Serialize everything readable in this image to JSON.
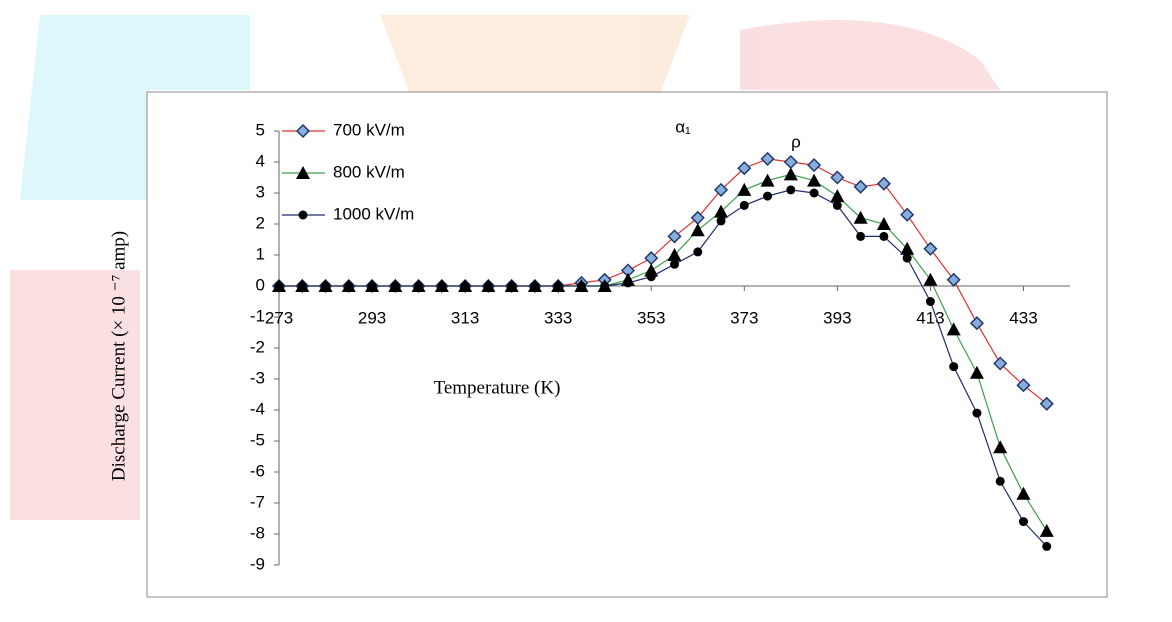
{
  "chart_data": {
    "type": "line",
    "y_label": "Discharge Current  (× 10 ⁻⁷ amp)",
    "x_label": "Temperature (K)",
    "annotations": [
      "α₁",
      "ρ"
    ],
    "x": [
      273,
      278,
      283,
      288,
      293,
      298,
      303,
      308,
      313,
      318,
      323,
      328,
      333,
      338,
      343,
      348,
      353,
      358,
      363,
      368,
      373,
      378,
      383,
      388,
      393,
      398,
      403,
      408,
      413,
      418,
      423,
      428,
      433,
      438
    ],
    "series": [
      {
        "name": "700 kV/m",
        "color": "#e0302c",
        "marker": "diamond",
        "marker_color": "#1f3a6e",
        "marker_fill": "#8aaedc",
        "values": [
          0,
          0,
          0,
          0,
          0,
          0,
          0,
          0,
          0,
          0,
          0,
          0,
          0,
          0.1,
          0.2,
          0.5,
          0.9,
          1.6,
          2.2,
          3.1,
          3.8,
          4.1,
          4.0,
          3.9,
          3.5,
          3.2,
          3.3,
          2.3,
          1.2,
          0.2,
          -1.2,
          -2.5,
          -3.2,
          -3.8
        ]
      },
      {
        "name": "800 kV/m",
        "color": "#3aa04a",
        "marker": "triangle",
        "marker_color": "#000000",
        "values": [
          0,
          0,
          0,
          0,
          0,
          0,
          0,
          0,
          0,
          0,
          0,
          0,
          0,
          0,
          0,
          0.2,
          0.5,
          1.0,
          1.8,
          2.4,
          3.1,
          3.4,
          3.6,
          3.4,
          2.9,
          2.2,
          2.0,
          1.2,
          0.2,
          -1.4,
          -2.8,
          -5.2,
          -6.7,
          -7.9
        ]
      },
      {
        "name": "1000 kV/m",
        "color": "#1f2f6e",
        "marker": "circle",
        "marker_color": "#000000",
        "values": [
          0,
          0,
          0,
          0,
          0,
          0,
          0,
          0,
          0,
          0,
          0,
          0,
          0,
          0,
          0,
          0.1,
          0.3,
          0.7,
          1.1,
          2.1,
          2.6,
          2.9,
          3.1,
          3.0,
          2.6,
          1.6,
          1.6,
          0.9,
          -0.5,
          -2.6,
          -4.1,
          -6.3,
          -7.6,
          -8.4
        ]
      }
    ],
    "xlim": [
      273,
      443
    ],
    "xticks": [
      273,
      293,
      313,
      333,
      353,
      373,
      393,
      413,
      433
    ],
    "ylim": [
      -9,
      5
    ],
    "yticks": [
      -9,
      -8,
      -7,
      -6,
      -5,
      -4,
      -3,
      -2,
      -1,
      0,
      1,
      2,
      3,
      4,
      5
    ],
    "legend": "top-left",
    "grid": false
  }
}
